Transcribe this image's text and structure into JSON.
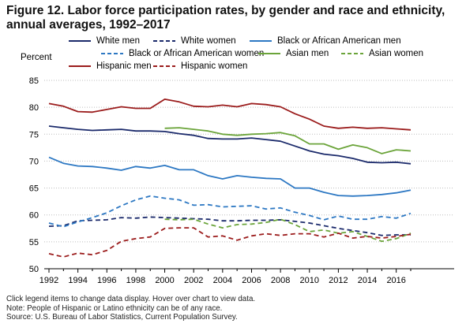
{
  "title": "Figure 12. Labor force participation rates, by gender and race and ethnicity, annual averages, 1992–2017",
  "chart_data": {
    "type": "line",
    "title": "Figure 12. Labor force participation rates, by gender and race and ethnicity, annual averages, 1992–2017",
    "xlabel": "",
    "ylabel": "Percent",
    "xlim": [
      1992,
      2017
    ],
    "ylim": [
      50,
      85
    ],
    "xticks": [
      "1992",
      "1994",
      "1996",
      "1998",
      "2000",
      "2002",
      "2004",
      "2006",
      "2008",
      "2010",
      "2012",
      "2014",
      "2016"
    ],
    "yticks": [
      "50",
      "55",
      "60",
      "65",
      "70",
      "75",
      "80",
      "85"
    ],
    "grid": "horizontal dotted",
    "legend_position": "top",
    "series": [
      {
        "name": "White men",
        "color": "#1b2a6b",
        "dash": "solid",
        "x": [
          1992,
          1993,
          1994,
          1995,
          1996,
          1997,
          1998,
          1999,
          2000,
          2001,
          2002,
          2003,
          2004,
          2005,
          2006,
          2007,
          2008,
          2009,
          2010,
          2011,
          2012,
          2013,
          2014,
          2015,
          2016,
          2017
        ],
        "values": [
          76.5,
          76.2,
          75.9,
          75.7,
          75.8,
          75.9,
          75.6,
          75.6,
          75.5,
          75.1,
          74.8,
          74.2,
          74.1,
          74.1,
          74.3,
          74.0,
          73.7,
          72.8,
          71.9,
          71.3,
          71.0,
          70.5,
          69.8,
          69.7,
          69.8,
          69.5
        ]
      },
      {
        "name": "White women",
        "color": "#1b2a6b",
        "dash": "dashed",
        "x": [
          1992,
          1993,
          1994,
          1995,
          1996,
          1997,
          1998,
          1999,
          2000,
          2001,
          2002,
          2003,
          2004,
          2005,
          2006,
          2007,
          2008,
          2009,
          2010,
          2011,
          2012,
          2013,
          2014,
          2015,
          2016,
          2017
        ],
        "values": [
          57.9,
          58.0,
          58.9,
          59.0,
          59.1,
          59.5,
          59.4,
          59.6,
          59.5,
          59.4,
          59.3,
          59.2,
          58.9,
          58.9,
          59.0,
          59.0,
          59.1,
          58.8,
          58.5,
          58.0,
          57.5,
          57.1,
          56.7,
          56.2,
          56.3,
          56.3
        ]
      },
      {
        "name": "Black or African American men",
        "color": "#2d78c3",
        "dash": "solid",
        "x": [
          1992,
          1993,
          1994,
          1995,
          1996,
          1997,
          1998,
          1999,
          2000,
          2001,
          2002,
          2003,
          2004,
          2005,
          2006,
          2007,
          2008,
          2009,
          2010,
          2011,
          2012,
          2013,
          2014,
          2015,
          2016,
          2017
        ],
        "values": [
          70.7,
          69.6,
          69.1,
          69.0,
          68.7,
          68.3,
          69.0,
          68.7,
          69.2,
          68.4,
          68.4,
          67.3,
          66.7,
          67.3,
          67.0,
          66.8,
          66.7,
          65.0,
          65.0,
          64.2,
          63.6,
          63.5,
          63.6,
          63.8,
          64.1,
          64.6
        ]
      },
      {
        "name": "Black or African American women",
        "color": "#2d78c3",
        "dash": "dashed",
        "x": [
          1992,
          1993,
          1994,
          1995,
          1996,
          1997,
          1998,
          1999,
          2000,
          2001,
          2002,
          2003,
          2004,
          2005,
          2006,
          2007,
          2008,
          2009,
          2010,
          2011,
          2012,
          2013,
          2014,
          2015,
          2016,
          2017
        ],
        "values": [
          58.5,
          57.8,
          58.7,
          59.5,
          60.4,
          61.7,
          62.8,
          63.5,
          63.1,
          62.8,
          61.8,
          61.9,
          61.5,
          61.6,
          61.7,
          61.1,
          61.3,
          60.5,
          59.9,
          59.1,
          59.8,
          59.2,
          59.2,
          59.7,
          59.4,
          60.3
        ]
      },
      {
        "name": "Asian men",
        "color": "#6ba43a",
        "dash": "solid",
        "x": [
          2000,
          2001,
          2002,
          2003,
          2004,
          2005,
          2006,
          2007,
          2008,
          2009,
          2010,
          2011,
          2012,
          2013,
          2014,
          2015,
          2016,
          2017
        ],
        "values": [
          76.1,
          76.2,
          75.9,
          75.6,
          75.0,
          74.8,
          75.0,
          75.1,
          75.3,
          74.7,
          73.2,
          73.2,
          72.2,
          73.0,
          72.5,
          71.4,
          72.1,
          71.9
        ]
      },
      {
        "name": "Asian women",
        "color": "#6ba43a",
        "dash": "dashed",
        "x": [
          2000,
          2001,
          2002,
          2003,
          2004,
          2005,
          2006,
          2007,
          2008,
          2009,
          2010,
          2011,
          2012,
          2013,
          2014,
          2015,
          2016,
          2017
        ],
        "values": [
          59.2,
          59.1,
          59.2,
          58.3,
          57.6,
          58.2,
          58.3,
          58.6,
          59.2,
          58.2,
          56.9,
          57.2,
          56.6,
          56.9,
          56.0,
          55.1,
          55.6,
          56.6
        ]
      },
      {
        "name": "Hispanic men",
        "color": "#9b1c1c",
        "dash": "solid",
        "x": [
          1992,
          1993,
          1994,
          1995,
          1996,
          1997,
          1998,
          1999,
          2000,
          2001,
          2002,
          2003,
          2004,
          2005,
          2006,
          2007,
          2008,
          2009,
          2010,
          2011,
          2012,
          2013,
          2014,
          2015,
          2016,
          2017
        ],
        "values": [
          80.7,
          80.2,
          79.2,
          79.1,
          79.6,
          80.1,
          79.8,
          79.8,
          81.5,
          81.0,
          80.2,
          80.1,
          80.4,
          80.1,
          80.7,
          80.5,
          80.1,
          78.8,
          77.8,
          76.5,
          76.1,
          76.3,
          76.1,
          76.2,
          76.0,
          75.8
        ]
      },
      {
        "name": "Hispanic women",
        "color": "#9b1c1c",
        "dash": "dashed",
        "x": [
          1992,
          1993,
          1994,
          1995,
          1996,
          1997,
          1998,
          1999,
          2000,
          2001,
          2002,
          2003,
          2004,
          2005,
          2006,
          2007,
          2008,
          2009,
          2010,
          2011,
          2012,
          2013,
          2014,
          2015,
          2016,
          2017
        ],
        "values": [
          52.8,
          52.2,
          52.9,
          52.6,
          53.4,
          55.1,
          55.6,
          55.9,
          57.5,
          57.6,
          57.6,
          55.9,
          56.1,
          55.3,
          56.1,
          56.5,
          56.2,
          56.5,
          56.5,
          55.9,
          56.6,
          55.7,
          56.0,
          55.7,
          56.0,
          56.4
        ]
      }
    ]
  },
  "footer": {
    "instructions": "Click legend items to change data display. Hover over chart to view data.",
    "note": "Note: People of Hispanic or Latino ethnicity can be of any race.",
    "source": "Source: U.S. Bureau of Labor Statistics, Current Population Survey."
  }
}
